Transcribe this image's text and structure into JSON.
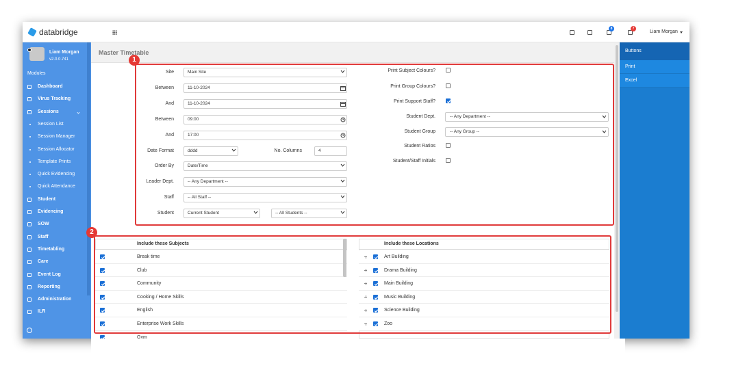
{
  "header": {
    "brand": "databridge",
    "user": "Liam Morgan",
    "badges": [
      8,
      7
    ]
  },
  "sidebar": {
    "user": "Liam Morgan",
    "version": "v2.0.0.741",
    "section": "Modules",
    "items": [
      {
        "label": "Dashboard",
        "sub": false
      },
      {
        "label": "Virus Tracking",
        "sub": false
      },
      {
        "label": "Sessions",
        "sub": false
      },
      {
        "label": "Session List",
        "sub": true
      },
      {
        "label": "Session Manager",
        "sub": true
      },
      {
        "label": "Session Allocator",
        "sub": true
      },
      {
        "label": "Template Prints",
        "sub": true
      },
      {
        "label": "Quick Evidencing",
        "sub": true
      },
      {
        "label": "Quick Attendance",
        "sub": true
      },
      {
        "label": "Student",
        "sub": false
      },
      {
        "label": "Evidencing",
        "sub": false
      },
      {
        "label": "SOW",
        "sub": false
      },
      {
        "label": "Staff",
        "sub": false
      },
      {
        "label": "Timetabling",
        "sub": false
      },
      {
        "label": "Care",
        "sub": false
      },
      {
        "label": "Event Log",
        "sub": false
      },
      {
        "label": "Reporting",
        "sub": false
      },
      {
        "label": "Administration",
        "sub": false
      },
      {
        "label": "ILR",
        "sub": false
      }
    ]
  },
  "page": {
    "title": "Master Timetable"
  },
  "callouts": [
    "1",
    "2"
  ],
  "form": {
    "left": [
      {
        "label": "Site",
        "fields": [
          {
            "kind": "select",
            "value": "Main Site"
          }
        ]
      },
      {
        "label": "Between",
        "fields": [
          {
            "kind": "date",
            "value": "11-10-2024"
          }
        ]
      },
      {
        "label": "And",
        "fields": [
          {
            "kind": "date",
            "value": "11-10-2024"
          }
        ]
      },
      {
        "label": "Between",
        "fields": [
          {
            "kind": "time",
            "value": "09:00"
          }
        ]
      },
      {
        "label": "And",
        "fields": [
          {
            "kind": "time",
            "value": "17:00"
          }
        ]
      },
      {
        "label": "Date Format",
        "fields": [
          {
            "kind": "select",
            "value": "dddd"
          },
          {
            "kind": "input",
            "label": "No. Columns",
            "value": "4"
          }
        ]
      },
      {
        "label": "Order By",
        "fields": [
          {
            "kind": "select",
            "value": "Date/Time"
          }
        ]
      },
      {
        "label": "Leader Dept.",
        "fields": [
          {
            "kind": "select",
            "value": "-- Any Department --"
          }
        ]
      },
      {
        "label": "Staff",
        "fields": [
          {
            "kind": "select",
            "value": "-- All Staff --"
          }
        ]
      },
      {
        "label": "Student",
        "fields": [
          {
            "kind": "select",
            "value": "Current Student"
          },
          {
            "kind": "select",
            "value": "-- All Students --"
          }
        ]
      }
    ],
    "right": [
      {
        "label": "Print Subject Colours?",
        "checked": false
      },
      {
        "label": "Print Group Colours?",
        "checked": false
      },
      {
        "label": "Print Support Staff?",
        "checked": true
      },
      {
        "label": "Student Dept.",
        "select": "-- Any Department --"
      },
      {
        "label": "Student Group",
        "select": "-- Any Group --"
      },
      {
        "label": "Student Ratios",
        "checked": false
      },
      {
        "label": "Student/Staff Initials",
        "checked": false
      }
    ]
  },
  "subjects": {
    "title": "Include these Subjects",
    "rows": [
      {
        "label": "Break time",
        "checked": true
      },
      {
        "label": "Club",
        "checked": true
      },
      {
        "label": "Community",
        "checked": true
      },
      {
        "label": "Cooking / Home Skills",
        "checked": true
      },
      {
        "label": "English",
        "checked": true
      },
      {
        "label": "Enterprise Work Skills",
        "checked": true
      },
      {
        "label": "Gym",
        "checked": true
      }
    ]
  },
  "locations": {
    "title": "Include these Locations",
    "rows": [
      {
        "label": "Art Building",
        "checked": true
      },
      {
        "label": "Drama Building",
        "checked": true
      },
      {
        "label": "Main Building",
        "checked": true
      },
      {
        "label": "Music Building",
        "checked": true
      },
      {
        "label": "Science Building",
        "checked": true
      },
      {
        "label": "Zoo",
        "checked": true
      }
    ]
  },
  "actions": {
    "title": "Buttons",
    "items": [
      "Print",
      "Excel"
    ]
  }
}
